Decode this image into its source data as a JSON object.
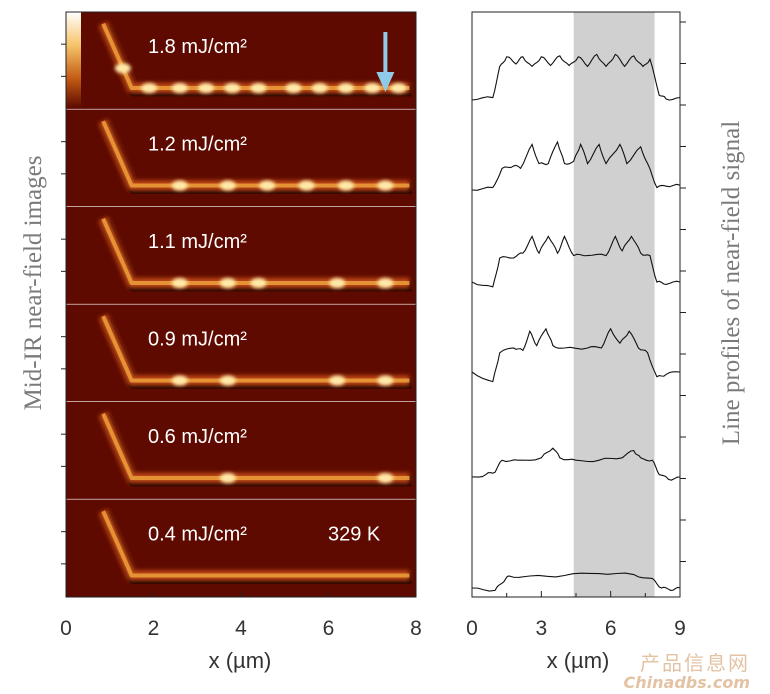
{
  "figure": {
    "left_ylabel": "Mid-IR near-field images",
    "right_ylabel": "Line profiles of near-field signal",
    "temperature_label": "329 K",
    "watermark_cn": "产品信息网",
    "watermark_en": "Chinadbs.com",
    "colors": {
      "image_bg": "#5e0a00",
      "wire_dark": "#c14a12",
      "wire_mid": "#e99a38",
      "wire_hot": "#ffe9a8",
      "arrow": "#8fcbe8",
      "shade": "#d0d0d0",
      "trace": "#111111"
    }
  },
  "chart_data": [
    {
      "type": "heatmap",
      "panels": [
        "1.8 mJ/cm²",
        "1.2 mJ/cm²",
        "1.1 mJ/cm²",
        "0.9 mJ/cm²",
        "0.6 mJ/cm²",
        "0.4 mJ/cm²"
      ],
      "fluence_mJ_cm2": [
        1.8,
        1.2,
        1.1,
        0.9,
        0.6,
        0.4
      ],
      "xlabel": "x (µm)",
      "xlim": [
        0,
        8
      ],
      "xticks": [
        0,
        2,
        4,
        6,
        8
      ],
      "hot_spots_x_um": [
        [
          1.3,
          1.9,
          2.6,
          3.2,
          3.8,
          4.4,
          5.2,
          5.8,
          6.4,
          7.0,
          7.6
        ],
        [
          2.6,
          3.7,
          4.6,
          5.5,
          6.4,
          7.3
        ],
        [
          2.6,
          3.7,
          4.4,
          6.2,
          7.3
        ],
        [
          2.6,
          3.7,
          6.2,
          7.3
        ],
        [
          3.7,
          7.3
        ],
        []
      ],
      "arrow_x_um": 7.3
    },
    {
      "type": "line",
      "xlabel": "x (µm)",
      "xlim": [
        0,
        9
      ],
      "xticks": [
        0,
        3,
        6,
        9
      ],
      "shaded_region_x": [
        4.4,
        7.9
      ],
      "series": [
        {
          "values": [
            [
              0,
              0
            ],
            [
              0.9,
              0.05
            ],
            [
              1.2,
              0.7
            ],
            [
              1.5,
              0.9
            ],
            [
              1.9,
              0.75
            ],
            [
              2.2,
              0.9
            ],
            [
              2.6,
              0.7
            ],
            [
              3.0,
              0.9
            ],
            [
              3.4,
              0.72
            ],
            [
              3.8,
              0.92
            ],
            [
              4.2,
              0.72
            ],
            [
              4.6,
              0.9
            ],
            [
              5.0,
              0.7
            ],
            [
              5.4,
              0.95
            ],
            [
              5.8,
              0.7
            ],
            [
              6.2,
              0.95
            ],
            [
              6.6,
              0.7
            ],
            [
              7.0,
              0.92
            ],
            [
              7.4,
              0.7
            ],
            [
              7.7,
              0.85
            ],
            [
              8.1,
              0.1
            ],
            [
              8.4,
              0.02
            ],
            [
              9,
              0.05
            ]
          ]
        },
        {
          "values": [
            [
              0,
              0
            ],
            [
              0.9,
              0.05
            ],
            [
              1.3,
              0.45
            ],
            [
              1.8,
              0.5
            ],
            [
              2.1,
              0.45
            ],
            [
              2.6,
              0.95
            ],
            [
              2.9,
              0.55
            ],
            [
              3.3,
              0.55
            ],
            [
              3.7,
              1.0
            ],
            [
              4.0,
              0.55
            ],
            [
              4.4,
              0.6
            ],
            [
              4.7,
              0.95
            ],
            [
              5.0,
              0.55
            ],
            [
              5.5,
              0.95
            ],
            [
              5.8,
              0.55
            ],
            [
              6.4,
              0.95
            ],
            [
              6.7,
              0.55
            ],
            [
              7.3,
              0.9
            ],
            [
              7.6,
              0.55
            ],
            [
              8.0,
              0.05
            ],
            [
              8.4,
              0.08
            ],
            [
              9,
              0.1
            ]
          ]
        },
        {
          "values": [
            [
              0,
              0
            ],
            [
              0.9,
              -0.1
            ],
            [
              1.2,
              0.5
            ],
            [
              1.8,
              0.5
            ],
            [
              2.2,
              0.6
            ],
            [
              2.6,
              0.95
            ],
            [
              2.9,
              0.6
            ],
            [
              3.3,
              0.95
            ],
            [
              3.7,
              0.6
            ],
            [
              4.0,
              0.95
            ],
            [
              4.4,
              0.55
            ],
            [
              5.0,
              0.55
            ],
            [
              5.8,
              0.55
            ],
            [
              6.2,
              0.95
            ],
            [
              6.5,
              0.65
            ],
            [
              6.9,
              0.95
            ],
            [
              7.3,
              0.6
            ],
            [
              7.7,
              0.55
            ],
            [
              8.0,
              0.0
            ],
            [
              8.4,
              -0.05
            ],
            [
              9,
              0.0
            ]
          ]
        },
        {
          "values": [
            [
              0,
              0
            ],
            [
              0.9,
              -0.2
            ],
            [
              1.2,
              0.4
            ],
            [
              1.8,
              0.5
            ],
            [
              2.2,
              0.45
            ],
            [
              2.5,
              0.85
            ],
            [
              2.8,
              0.55
            ],
            [
              3.2,
              0.9
            ],
            [
              3.5,
              0.55
            ],
            [
              4.0,
              0.5
            ],
            [
              5.0,
              0.5
            ],
            [
              5.6,
              0.5
            ],
            [
              6.0,
              0.9
            ],
            [
              6.4,
              0.6
            ],
            [
              6.8,
              0.85
            ],
            [
              7.2,
              0.5
            ],
            [
              7.6,
              0.4
            ],
            [
              8.0,
              -0.1
            ],
            [
              8.4,
              -0.05
            ],
            [
              9,
              0.0
            ]
          ]
        },
        {
          "values": [
            [
              0,
              0
            ],
            [
              0.6,
              0.05
            ],
            [
              1.0,
              0.1
            ],
            [
              1.3,
              0.35
            ],
            [
              2.0,
              0.35
            ],
            [
              3.0,
              0.4
            ],
            [
              3.5,
              0.6
            ],
            [
              3.8,
              0.4
            ],
            [
              4.5,
              0.35
            ],
            [
              5.5,
              0.35
            ],
            [
              6.5,
              0.4
            ],
            [
              7.0,
              0.55
            ],
            [
              7.3,
              0.4
            ],
            [
              7.8,
              0.35
            ],
            [
              8.1,
              0.05
            ],
            [
              8.5,
              -0.05
            ],
            [
              9,
              0.0
            ]
          ]
        },
        {
          "values": [
            [
              0,
              0
            ],
            [
              1.0,
              -0.05
            ],
            [
              1.3,
              0.1
            ],
            [
              1.6,
              0.25
            ],
            [
              2.5,
              0.25
            ],
            [
              4.0,
              0.26
            ],
            [
              5.5,
              0.3
            ],
            [
              7.0,
              0.28
            ],
            [
              7.8,
              0.2
            ],
            [
              8.2,
              0.0
            ],
            [
              8.6,
              -0.05
            ],
            [
              9,
              0.0
            ]
          ]
        }
      ]
    }
  ]
}
